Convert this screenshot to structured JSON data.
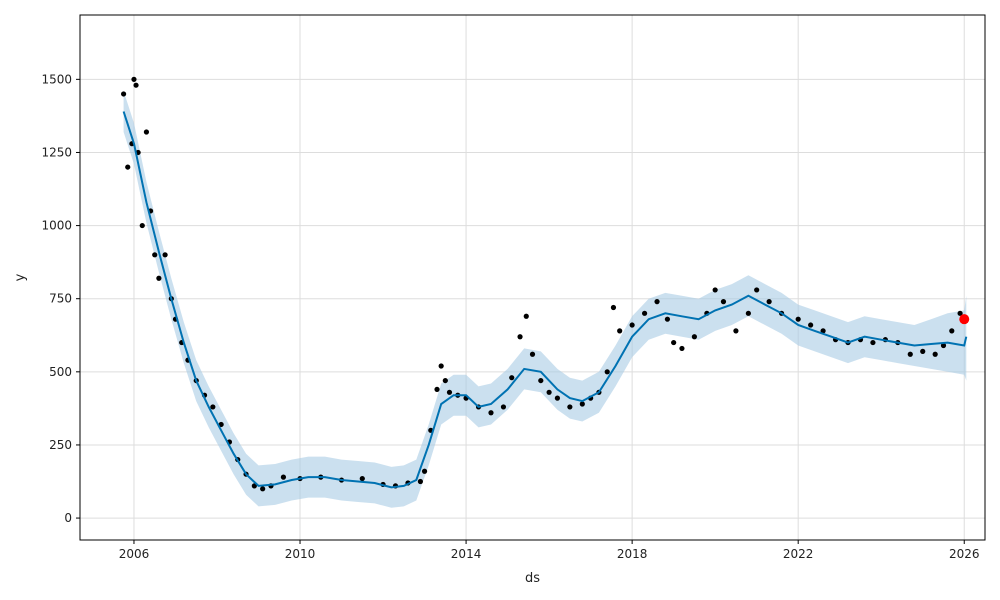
{
  "chart_data": {
    "type": "scatter",
    "title": "",
    "xlabel": "ds",
    "ylabel": "y",
    "xlim": [
      2004.7,
      2026.5
    ],
    "ylim": [
      -75,
      1720
    ],
    "grid": true,
    "x_ticks": [
      2006,
      2010,
      2014,
      2018,
      2022,
      2026
    ],
    "x_tick_labels": [
      "2006",
      "2010",
      "2014",
      "2018",
      "2022",
      "2026"
    ],
    "y_ticks": [
      0,
      250,
      500,
      750,
      1000,
      1250,
      1500
    ],
    "y_tick_labels": [
      "0",
      "250",
      "500",
      "750",
      "1000",
      "1250",
      "1500"
    ],
    "colors": {
      "observed": "#000000",
      "forecast_line": "#0072B2",
      "uncertainty_band": "#A8CCE4",
      "latest_point": "#FF0000"
    },
    "series": [
      {
        "role": "observed",
        "x": [
          2005.75,
          2005.85,
          2005.95,
          2006.0,
          2006.05,
          2006.1,
          2006.2,
          2006.3,
          2006.4,
          2006.5,
          2006.6,
          2006.75,
          2006.9,
          2007.0,
          2007.15,
          2007.3,
          2007.5,
          2007.7,
          2007.9,
          2008.1,
          2008.3,
          2008.5,
          2008.7,
          2008.9,
          2009.1,
          2009.3,
          2009.6,
          2010.0,
          2010.5,
          2011.0,
          2011.5,
          2012.0,
          2012.3,
          2012.6,
          2012.9,
          2013.0,
          2013.15,
          2013.3,
          2013.4,
          2013.5,
          2013.6,
          2013.8,
          2014.0,
          2014.3,
          2014.6,
          2014.9,
          2015.1,
          2015.3,
          2015.45,
          2015.6,
          2015.8,
          2016.0,
          2016.2,
          2016.5,
          2016.8,
          2017.0,
          2017.2,
          2017.4,
          2017.55,
          2017.7,
          2018.0,
          2018.3,
          2018.6,
          2018.85,
          2019.0,
          2019.2,
          2019.5,
          2019.8,
          2020.0,
          2020.2,
          2020.5,
          2020.8,
          2021.0,
          2021.3,
          2021.6,
          2022.0,
          2022.3,
          2022.6,
          2022.9,
          2023.2,
          2023.5,
          2023.8,
          2024.1,
          2024.4,
          2024.7,
          2025.0,
          2025.3,
          2025.5,
          2025.7,
          2025.9
        ],
        "values": [
          1450,
          1200,
          1280,
          1500,
          1480,
          1250,
          1000,
          1320,
          1050,
          900,
          820,
          900,
          750,
          680,
          600,
          540,
          470,
          420,
          380,
          320,
          260,
          200,
          150,
          110,
          100,
          110,
          140,
          135,
          140,
          130,
          135,
          115,
          110,
          120,
          125,
          160,
          300,
          440,
          520,
          470,
          430,
          420,
          410,
          380,
          360,
          380,
          480,
          620,
          690,
          560,
          470,
          430,
          410,
          380,
          390,
          410,
          430,
          500,
          720,
          640,
          660,
          700,
          740,
          680,
          600,
          580,
          620,
          700,
          780,
          740,
          640,
          700,
          780,
          740,
          700,
          680,
          660,
          640,
          610,
          600,
          610,
          600,
          610,
          600,
          560,
          570,
          560,
          590,
          640,
          700
        ]
      },
      {
        "role": "forecast",
        "x": [
          2005.75,
          2006.0,
          2006.3,
          2006.6,
          2006.9,
          2007.2,
          2007.5,
          2007.8,
          2008.1,
          2008.4,
          2008.7,
          2009.0,
          2009.4,
          2009.8,
          2010.2,
          2010.6,
          2011.0,
          2011.4,
          2011.8,
          2012.2,
          2012.5,
          2012.8,
          2013.1,
          2013.4,
          2013.7,
          2014.0,
          2014.3,
          2014.6,
          2015.0,
          2015.4,
          2015.8,
          2016.2,
          2016.5,
          2016.8,
          2017.2,
          2017.6,
          2018.0,
          2018.4,
          2018.8,
          2019.2,
          2019.6,
          2020.0,
          2020.4,
          2020.8,
          2021.2,
          2021.6,
          2022.0,
          2022.4,
          2022.8,
          2023.2,
          2023.6,
          2024.0,
          2024.4,
          2024.8,
          2025.2,
          2025.6,
          2026.0,
          2026.05
        ],
        "values": [
          1390,
          1280,
          1080,
          910,
          750,
          600,
          470,
          380,
          300,
          220,
          150,
          110,
          115,
          130,
          140,
          140,
          130,
          125,
          120,
          105,
          110,
          130,
          250,
          390,
          420,
          420,
          380,
          390,
          440,
          510,
          500,
          440,
          410,
          400,
          430,
          520,
          620,
          680,
          700,
          690,
          680,
          710,
          730,
          760,
          730,
          700,
          660,
          640,
          620,
          600,
          620,
          610,
          600,
          590,
          595,
          600,
          590,
          620
        ]
      },
      {
        "role": "uncertainty_lower",
        "x": [
          2005.75,
          2006.0,
          2006.3,
          2006.6,
          2006.9,
          2007.2,
          2007.5,
          2007.8,
          2008.1,
          2008.4,
          2008.7,
          2009.0,
          2009.4,
          2009.8,
          2010.2,
          2010.6,
          2011.0,
          2011.4,
          2011.8,
          2012.2,
          2012.5,
          2012.8,
          2013.1,
          2013.4,
          2013.7,
          2014.0,
          2014.3,
          2014.6,
          2015.0,
          2015.4,
          2015.8,
          2016.2,
          2016.5,
          2016.8,
          2017.2,
          2017.6,
          2018.0,
          2018.4,
          2018.8,
          2019.2,
          2019.6,
          2020.0,
          2020.4,
          2020.8,
          2021.2,
          2021.6,
          2022.0,
          2022.4,
          2022.8,
          2023.2,
          2023.6,
          2024.0,
          2024.4,
          2024.8,
          2025.2,
          2025.6,
          2026.0,
          2026.05
        ],
        "values": [
          1320,
          1210,
          1010,
          840,
          680,
          530,
          400,
          310,
          230,
          150,
          80,
          40,
          45,
          60,
          70,
          70,
          60,
          55,
          50,
          35,
          40,
          60,
          180,
          320,
          350,
          350,
          310,
          320,
          370,
          440,
          430,
          370,
          340,
          330,
          360,
          450,
          550,
          610,
          630,
          620,
          610,
          640,
          660,
          690,
          660,
          630,
          590,
          570,
          550,
          530,
          550,
          540,
          530,
          520,
          510,
          500,
          490,
          470
        ]
      },
      {
        "role": "uncertainty_upper",
        "x": [
          2005.75,
          2006.0,
          2006.3,
          2006.6,
          2006.9,
          2007.2,
          2007.5,
          2007.8,
          2008.1,
          2008.4,
          2008.7,
          2009.0,
          2009.4,
          2009.8,
          2010.2,
          2010.6,
          2011.0,
          2011.4,
          2011.8,
          2012.2,
          2012.5,
          2012.8,
          2013.1,
          2013.4,
          2013.7,
          2014.0,
          2014.3,
          2014.6,
          2015.0,
          2015.4,
          2015.8,
          2016.2,
          2016.5,
          2016.8,
          2017.2,
          2017.6,
          2018.0,
          2018.4,
          2018.8,
          2019.2,
          2019.6,
          2020.0,
          2020.4,
          2020.8,
          2021.2,
          2021.6,
          2022.0,
          2022.4,
          2022.8,
          2023.2,
          2023.6,
          2024.0,
          2024.4,
          2024.8,
          2025.2,
          2025.6,
          2026.0,
          2026.05
        ],
        "values": [
          1460,
          1350,
          1150,
          980,
          820,
          670,
          540,
          450,
          370,
          290,
          220,
          180,
          185,
          200,
          210,
          210,
          200,
          195,
          190,
          175,
          180,
          200,
          320,
          460,
          490,
          490,
          450,
          460,
          510,
          580,
          570,
          510,
          480,
          470,
          500,
          590,
          690,
          750,
          770,
          760,
          750,
          780,
          800,
          830,
          800,
          770,
          730,
          710,
          690,
          670,
          690,
          680,
          670,
          660,
          680,
          700,
          710,
          760
        ]
      },
      {
        "role": "latest_observation",
        "x": [
          2026.0
        ],
        "values": [
          680
        ]
      }
    ]
  }
}
